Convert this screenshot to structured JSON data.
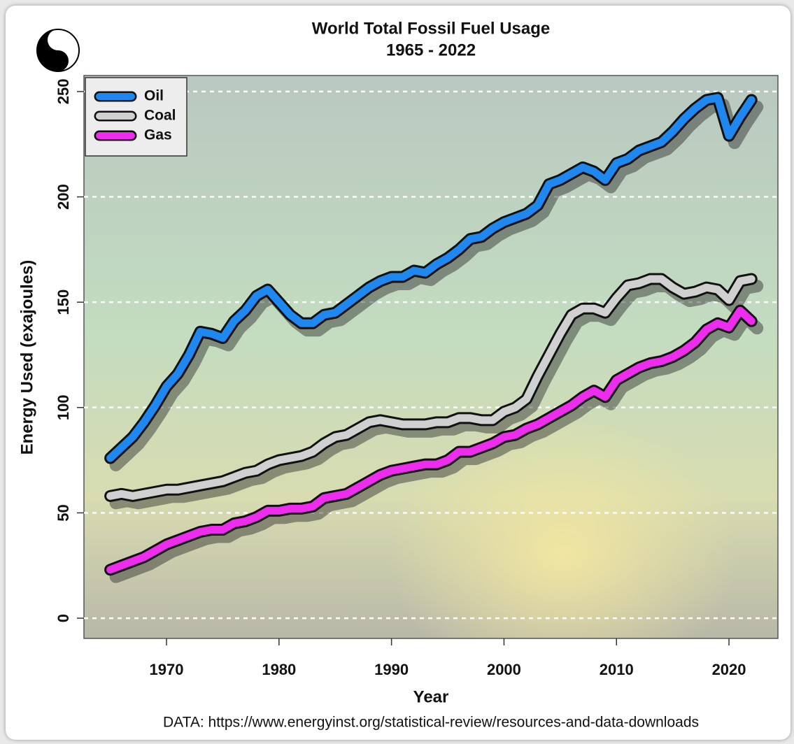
{
  "chart_data": {
    "type": "line",
    "title": "World Total Fossil Fuel Usage",
    "subtitle": "1965 - 2022",
    "x_label": "Year",
    "y_label": "Energy Used (exajoules)",
    "source": "DATA: https://www.energyinst.org/statistical-review/resources-and-data-downloads",
    "x": [
      1965,
      1966,
      1967,
      1968,
      1969,
      1970,
      1971,
      1972,
      1973,
      1974,
      1975,
      1976,
      1977,
      1978,
      1979,
      1980,
      1981,
      1982,
      1983,
      1984,
      1985,
      1986,
      1987,
      1988,
      1989,
      1990,
      1991,
      1992,
      1993,
      1994,
      1995,
      1996,
      1997,
      1998,
      1999,
      2000,
      2001,
      2002,
      2003,
      2004,
      2005,
      2006,
      2007,
      2008,
      2009,
      2010,
      2011,
      2012,
      2013,
      2014,
      2015,
      2016,
      2017,
      2018,
      2019,
      2020,
      2021,
      2022
    ],
    "series": [
      {
        "name": "Oil",
        "color": "#1e88f0",
        "values": [
          76,
          81,
          86,
          93,
          101,
          110,
          116,
          125,
          136,
          135,
          133,
          141,
          146,
          153,
          156,
          150,
          144,
          140,
          140,
          144,
          145,
          149,
          153,
          157,
          160,
          162,
          162,
          165,
          164,
          168,
          171,
          175,
          180,
          181,
          185,
          188,
          190,
          192,
          196,
          206,
          208,
          211,
          214,
          212,
          208,
          216,
          218,
          222,
          224,
          226,
          231,
          237,
          242,
          246,
          247,
          229,
          238,
          246
        ]
      },
      {
        "name": "Coal",
        "color": "#d0d0d0",
        "values": [
          58,
          59,
          58,
          59,
          60,
          61,
          61,
          62,
          63,
          64,
          65,
          67,
          69,
          70,
          73,
          75,
          76,
          77,
          79,
          83,
          86,
          87,
          90,
          93,
          94,
          93,
          92,
          92,
          92,
          93,
          93,
          95,
          95,
          94,
          94,
          98,
          100,
          104,
          115,
          125,
          135,
          144,
          147,
          147,
          145,
          152,
          158,
          159,
          161,
          161,
          157,
          154,
          155,
          157,
          156,
          151,
          160,
          161
        ]
      },
      {
        "name": "Gas",
        "color": "#ee2cee",
        "values": [
          23,
          25,
          27,
          29,
          32,
          35,
          37,
          39,
          41,
          42,
          42,
          45,
          46,
          48,
          51,
          51,
          52,
          52,
          53,
          57,
          58,
          59,
          62,
          65,
          68,
          70,
          71,
          72,
          73,
          73,
          75,
          79,
          79,
          81,
          83,
          86,
          87,
          90,
          92,
          95,
          98,
          101,
          105,
          108,
          105,
          113,
          116,
          119,
          121,
          122,
          124,
          127,
          131,
          137,
          140,
          138,
          146,
          141
        ]
      }
    ],
    "xlim": [
      1962.66,
      2024.35
    ],
    "ylim": [
      -9.6,
      257.6
    ],
    "xticks": [
      1970,
      1980,
      1990,
      2000,
      2010,
      2020
    ],
    "yticks": [
      0,
      50,
      100,
      150,
      200,
      250
    ],
    "grid": true,
    "legend": "top-left"
  }
}
